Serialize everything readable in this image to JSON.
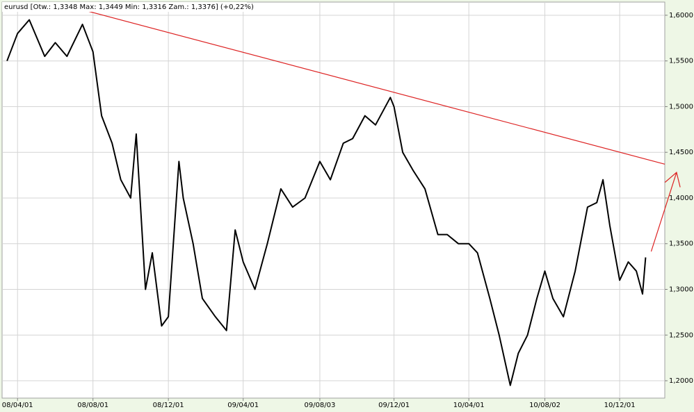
{
  "chart_data": {
    "type": "line",
    "title": "eurusd [Otw.: 1,3348  Max: 1,3449  Min: 1,3316  Zam.: 1,3376] (+0,22%)",
    "series": [
      {
        "color": "#000000",
        "x": [
          "2008-03-15",
          "2008-04-01",
          "2008-04-20",
          "2008-05-15",
          "2008-06-01",
          "2008-06-20",
          "2008-07-15",
          "2008-08-01",
          "2008-08-15",
          "2008-09-01",
          "2008-09-15",
          "2008-10-01",
          "2008-10-10",
          "2008-10-25",
          "2008-11-05",
          "2008-11-20",
          "2008-12-01",
          "2008-12-18",
          "2008-12-25",
          "2009-01-10",
          "2009-01-25",
          "2009-02-15",
          "2009-03-05",
          "2009-03-19",
          "2009-04-01",
          "2009-04-20",
          "2009-05-10",
          "2009-06-01",
          "2009-06-20",
          "2009-07-10",
          "2009-08-03",
          "2009-08-20",
          "2009-09-10",
          "2009-09-25",
          "2009-10-15",
          "2009-11-01",
          "2009-11-25",
          "2009-12-01",
          "2009-12-15",
          "2010-01-01",
          "2010-01-20",
          "2010-02-10",
          "2010-02-25",
          "2010-03-15",
          "2010-04-01",
          "2010-04-15",
          "2010-05-05",
          "2010-05-20",
          "2010-06-07",
          "2010-06-20",
          "2010-07-05",
          "2010-07-20",
          "2010-08-02",
          "2010-08-15",
          "2010-09-01",
          "2010-09-20",
          "2010-10-10",
          "2010-10-25",
          "2010-11-04",
          "2010-11-15",
          "2010-12-01",
          "2010-12-15",
          "2010-12-28",
          "2011-01-07",
          "2011-01-12"
        ],
        "values": [
          1.55,
          1.58,
          1.595,
          1.555,
          1.57,
          1.555,
          1.59,
          1.56,
          1.49,
          1.46,
          1.42,
          1.4,
          1.47,
          1.3,
          1.34,
          1.26,
          1.27,
          1.44,
          1.4,
          1.35,
          1.29,
          1.27,
          1.255,
          1.365,
          1.33,
          1.3,
          1.35,
          1.41,
          1.39,
          1.4,
          1.44,
          1.42,
          1.46,
          1.465,
          1.49,
          1.48,
          1.51,
          1.5,
          1.45,
          1.43,
          1.41,
          1.36,
          1.36,
          1.35,
          1.35,
          1.34,
          1.29,
          1.25,
          1.195,
          1.23,
          1.25,
          1.29,
          1.32,
          1.29,
          1.27,
          1.32,
          1.39,
          1.395,
          1.42,
          1.37,
          1.31,
          1.33,
          1.32,
          1.295,
          1.335
        ]
      }
    ],
    "trend_line": {
      "color": "#dd2222",
      "x": [
        "2008-07-15",
        "2011-02-12"
      ],
      "values": [
        1.606,
        1.437
      ]
    },
    "arrow": {
      "color": "#dd2222",
      "x": [
        "2011-01-21",
        "2011-03-03"
      ],
      "values": [
        1.3415,
        1.428
      ]
    },
    "xlim": [
      "2008-03-07",
      "2011-02-12"
    ],
    "xticks": [
      {
        "value": "2008-04-01",
        "label": "08/04/01"
      },
      {
        "value": "2008-08-01",
        "label": "08/08/01"
      },
      {
        "value": "2008-12-01",
        "label": "08/12/01"
      },
      {
        "value": "2009-04-01",
        "label": "09/04/01"
      },
      {
        "value": "2009-08-03",
        "label": "09/08/03"
      },
      {
        "value": "2009-12-01",
        "label": "09/12/01"
      },
      {
        "value": "2010-04-01",
        "label": "10/04/01"
      },
      {
        "value": "2010-08-02",
        "label": "10/08/02"
      },
      {
        "value": "2010-12-01",
        "label": "10/12/01"
      }
    ],
    "ylim": [
      1.181,
      1.6144
    ],
    "yticks": [
      {
        "value": 1.2,
        "label": "1,2000"
      },
      {
        "value": 1.25,
        "label": "1,2500"
      },
      {
        "value": 1.3,
        "label": "1,3000"
      },
      {
        "value": 1.35,
        "label": "1,3500"
      },
      {
        "value": 1.4,
        "label": "1,4000"
      },
      {
        "value": 1.45,
        "label": "1,4500"
      },
      {
        "value": 1.5,
        "label": "1,5000"
      },
      {
        "value": 1.55,
        "label": "1,5500"
      },
      {
        "value": 1.6,
        "label": "1,6000"
      }
    ],
    "grid": true
  }
}
